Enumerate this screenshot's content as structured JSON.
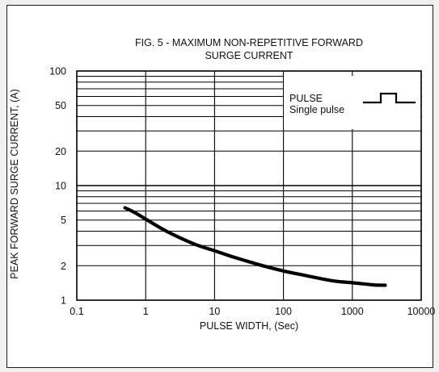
{
  "chart_data": {
    "type": "line",
    "title": [
      "FIG. 5 - MAXIMUM NON-REPETITIVE FORWARD",
      "SURGE CURRENT"
    ],
    "xlabel": "PULSE WIDTH, (Sec)",
    "ylabel": "PEAK FORWARD SURGE CURRENT, (A)",
    "x_scale": "log",
    "y_scale": "log",
    "xlim": [
      0.1,
      10000
    ],
    "ylim": [
      1,
      100
    ],
    "x_ticks": [
      0.1,
      1,
      10,
      100,
      1000,
      10000
    ],
    "x_tick_labels": [
      "0.1",
      "1",
      "10",
      "100",
      "1000",
      "10000"
    ],
    "y_ticks": [
      1,
      2,
      5,
      10,
      20,
      50,
      100
    ],
    "y_tick_labels": [
      "1",
      "2",
      "5",
      "10",
      "20",
      "50",
      "100"
    ],
    "grid": true,
    "series": [
      {
        "x": [
          0.5,
          0.7,
          1,
          2,
          5,
          10,
          20,
          50,
          100,
          200,
          500,
          1000,
          2000,
          3000
        ],
        "y": [
          6.4,
          5.8,
          5.1,
          4.0,
          3.1,
          2.7,
          2.35,
          2.0,
          1.8,
          1.65,
          1.48,
          1.42,
          1.36,
          1.35
        ]
      }
    ],
    "legend": {
      "placement": "top-right",
      "line1": "PULSE",
      "line2": "Single pulse",
      "symbol": "pulse-waveform"
    },
    "colors": {
      "curve": "#000000",
      "grid": "#000000",
      "background": "#ffffff"
    }
  }
}
